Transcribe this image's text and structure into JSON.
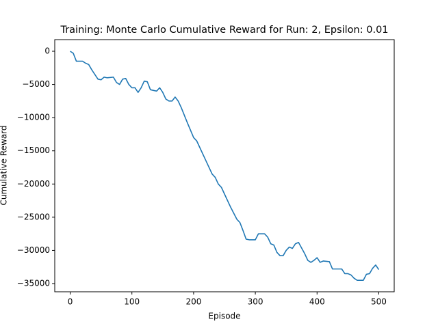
{
  "chart_data": {
    "type": "line",
    "title": "Training: Monte Carlo Cumulative Reward for Run: 2, Epsilon: 0.01",
    "x_label": "Episode",
    "y_label": "Cumulative Reward",
    "color": "#1f77b4",
    "x": [
      0,
      5,
      10,
      20,
      25,
      30,
      35,
      45,
      50,
      55,
      60,
      70,
      75,
      80,
      85,
      90,
      95,
      100,
      105,
      110,
      115,
      120,
      125,
      130,
      140,
      145,
      150,
      155,
      160,
      165,
      170,
      175,
      180,
      190,
      200,
      205,
      210,
      220,
      230,
      235,
      240,
      245,
      250,
      260,
      270,
      275,
      280,
      285,
      290,
      300,
      305,
      315,
      320,
      325,
      330,
      335,
      340,
      345,
      350,
      355,
      360,
      365,
      370,
      380,
      385,
      390,
      395,
      400,
      405,
      410,
      420,
      425,
      440,
      445,
      450,
      455,
      460,
      465,
      475,
      480,
      485,
      490,
      495,
      500
    ],
    "values": [
      0,
      -300,
      -1500,
      -1500,
      -1800,
      -2000,
      -2800,
      -4200,
      -4300,
      -3900,
      -4000,
      -3900,
      -4700,
      -5000,
      -4200,
      -4100,
      -5000,
      -5500,
      -5500,
      -6200,
      -5500,
      -4500,
      -4600,
      -5800,
      -6000,
      -5500,
      -6200,
      -7200,
      -7500,
      -7500,
      -6900,
      -7500,
      -8500,
      -10800,
      -13000,
      -13500,
      -14500,
      -16500,
      -18500,
      -19000,
      -20000,
      -20500,
      -21500,
      -23500,
      -25300,
      -25800,
      -27000,
      -28300,
      -28400,
      -28400,
      -27500,
      -27500,
      -28000,
      -29000,
      -29200,
      -30300,
      -30800,
      -30800,
      -30000,
      -29500,
      -29700,
      -29000,
      -28800,
      -30500,
      -31500,
      -31800,
      -31500,
      -31100,
      -31800,
      -31600,
      -31700,
      -32800,
      -32800,
      -33500,
      -33500,
      -33700,
      -34200,
      -34500,
      -34500,
      -33600,
      -33500,
      -32700,
      -32200,
      -32900
    ],
    "xlim": [
      -25,
      525
    ],
    "ylim": [
      1750,
      -36235
    ],
    "xticks": [
      0,
      100,
      200,
      300,
      400,
      500
    ],
    "yticks": [
      0,
      {
        "value": -5000,
        "label": "−5000"
      },
      {
        "value": -10000,
        "label": "−10000"
      },
      {
        "value": -15000,
        "label": "−15000"
      },
      {
        "value": -20000,
        "label": "−20000"
      },
      {
        "value": -25000,
        "label": "−25000"
      },
      {
        "value": -30000,
        "label": "−30000"
      },
      {
        "value": -35000,
        "label": "−35000"
      }
    ]
  }
}
